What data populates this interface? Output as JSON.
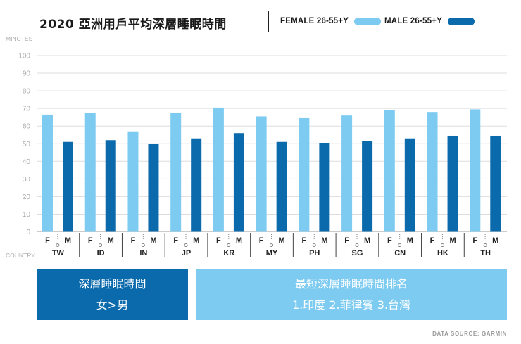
{
  "header": {
    "title": "2020 亞洲用戶平均深層睡眠時間"
  },
  "colors": {
    "female": "#7ecbf2",
    "male": "#0b6aab",
    "grid": "#dddddd",
    "axis_text": "#aaaaaa"
  },
  "chart_data": {
    "type": "bar",
    "title": "2020 亞洲用戶平均深層睡眠時間",
    "ylabel": "MINUTES",
    "xlabel": "COUNTRY",
    "ylim": [
      0,
      100
    ],
    "yticks": [
      0,
      10,
      20,
      30,
      40,
      50,
      60,
      70,
      80,
      90,
      100
    ],
    "categories": [
      "TW",
      "ID",
      "IN",
      "JP",
      "KR",
      "MY",
      "PH",
      "SG",
      "CN",
      "HK",
      "TH"
    ],
    "sub_labels": [
      "F",
      "M"
    ],
    "series": [
      {
        "name": "FEMALE 26-55+Y",
        "values": [
          66.5,
          67.5,
          57,
          67.5,
          70.5,
          65.5,
          64.5,
          66,
          69,
          68,
          69.5
        ]
      },
      {
        "name": "MALE 26-55+Y",
        "values": [
          51,
          52,
          50,
          53,
          56,
          51,
          50.5,
          51.5,
          53,
          54.5,
          54.5
        ]
      }
    ],
    "grid": true,
    "legend": "top-right"
  },
  "summary": {
    "left_title": "深層睡眠時間",
    "left_value": "女>男",
    "right_title": "最短深層睡眠時間排名",
    "right_value": "1.印度 2.菲律賓 3.台灣"
  },
  "source": "DATA SOURCE: GARMIN"
}
